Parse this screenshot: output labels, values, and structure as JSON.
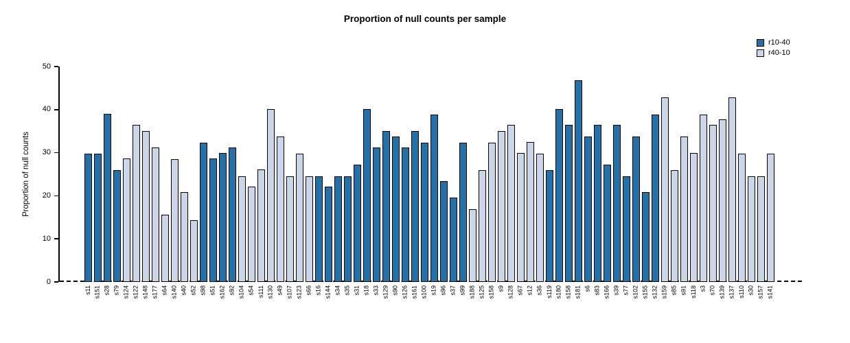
{
  "chart_data": {
    "type": "bar",
    "title": "Proportion of null counts per sample",
    "ylabel": "Proportion of null counts",
    "xlabel": "",
    "ylim": [
      0,
      50
    ],
    "yticks": [
      0,
      10,
      20,
      30,
      40,
      50
    ],
    "grid": false,
    "legend_position": "top-right",
    "zero_line_style": "dashed",
    "bar_border_color": "#000000",
    "legend": [
      {
        "name": "r10-40",
        "color": "#2470a8"
      },
      {
        "name": "r40-10",
        "color": "#cbd6e9"
      }
    ],
    "categories": [
      "s11",
      "s151",
      "s28",
      "s79",
      "s124",
      "s122",
      "s148",
      "s177",
      "s64",
      "s140",
      "s40",
      "s52",
      "s98",
      "s51",
      "s162",
      "s92",
      "s104",
      "s54",
      "s111",
      "s130",
      "s49",
      "s107",
      "s123",
      "s66",
      "s16",
      "s144",
      "s34",
      "s35",
      "s31",
      "s18",
      "s33",
      "s129",
      "s90",
      "s126",
      "s161",
      "s100",
      "s19",
      "s96",
      "s37",
      "s99",
      "s188",
      "s125",
      "s158",
      "s9",
      "s128",
      "s67",
      "s12",
      "s36",
      "s119",
      "s180",
      "s158",
      "s181",
      "s6",
      "s83",
      "s166",
      "s39",
      "s77",
      "s102",
      "s155",
      "s132",
      "s159",
      "s85",
      "s91",
      "s118",
      "s3",
      "s70",
      "s139",
      "s137",
      "s110",
      "s30",
      "s157",
      "s141"
    ],
    "values": [
      29.8,
      29.8,
      39.0,
      26.0,
      28.6,
      36.4,
      35.0,
      31.2,
      15.6,
      28.5,
      20.8,
      14.3,
      32.4,
      28.6,
      30.0,
      31.2,
      24.5,
      22.1,
      26.1,
      40.2,
      33.7,
      24.5,
      29.8,
      24.5,
      24.5,
      22.1,
      24.5,
      24.5,
      27.3,
      40.1,
      31.2,
      35.0,
      33.7,
      31.2,
      35.0,
      32.4,
      38.9,
      23.4,
      19.6,
      32.4,
      16.9,
      26.0,
      32.4,
      35.0,
      36.4,
      29.9,
      32.5,
      29.8,
      26.0,
      40.2,
      36.4,
      46.8,
      33.7,
      36.4,
      27.3,
      36.4,
      24.5,
      33.7,
      20.9,
      38.9,
      42.8,
      26.0,
      33.8,
      29.9,
      38.9,
      36.4,
      37.7,
      42.8,
      29.8,
      24.5,
      24.5,
      29.8
    ],
    "groups": [
      "r10-40",
      "r10-40",
      "r10-40",
      "r10-40",
      "r40-10",
      "r40-10",
      "r40-10",
      "r40-10",
      "r40-10",
      "r40-10",
      "r40-10",
      "r40-10",
      "r10-40",
      "r10-40",
      "r10-40",
      "r10-40",
      "r40-10",
      "r40-10",
      "r40-10",
      "r40-10",
      "r40-10",
      "r40-10",
      "r40-10",
      "r40-10",
      "r10-40",
      "r10-40",
      "r10-40",
      "r10-40",
      "r10-40",
      "r10-40",
      "r10-40",
      "r10-40",
      "r10-40",
      "r10-40",
      "r10-40",
      "r10-40",
      "r10-40",
      "r10-40",
      "r10-40",
      "r10-40",
      "r40-10",
      "r40-10",
      "r40-10",
      "r40-10",
      "r40-10",
      "r40-10",
      "r40-10",
      "r40-10",
      "r10-40",
      "r10-40",
      "r10-40",
      "r10-40",
      "r10-40",
      "r10-40",
      "r10-40",
      "r10-40",
      "r10-40",
      "r10-40",
      "r10-40",
      "r10-40",
      "r40-10",
      "r40-10",
      "r40-10",
      "r40-10",
      "r40-10",
      "r40-10",
      "r40-10",
      "r40-10",
      "r40-10",
      "r40-10",
      "r40-10",
      "r40-10"
    ]
  }
}
